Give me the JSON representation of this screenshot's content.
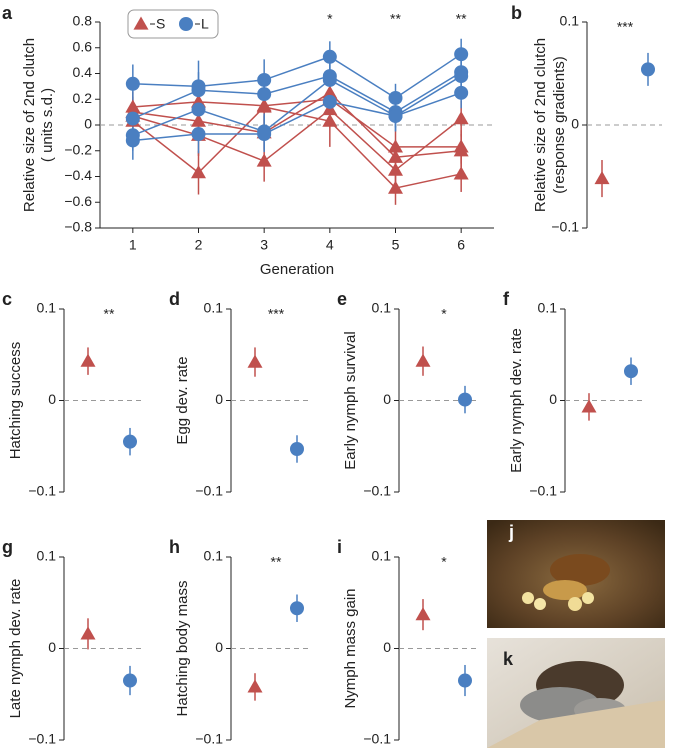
{
  "chart_data": [
    {
      "type": "line",
      "panel_label": "a",
      "ylabel": [
        "Relative size of 2nd clutch",
        "( units s.d.)"
      ],
      "xlabel": "Generation",
      "x": [
        1,
        2,
        3,
        4,
        5,
        6
      ],
      "xlim": [
        0.5,
        6.5
      ],
      "xticks": [
        1,
        2,
        3,
        4,
        5,
        6
      ],
      "ylim": [
        -0.8,
        0.8
      ],
      "yticks": [
        {
          "value": -0.8,
          "label": "−0.8"
        },
        {
          "value": -0.6,
          "label": "−0.6"
        },
        {
          "value": -0.4,
          "label": "−0.4"
        },
        {
          "value": -0.2,
          "label": "−0.2"
        },
        0,
        0.2,
        0.4,
        0.6,
        0.8
      ],
      "reference_line": 0,
      "legend": "upper left",
      "series": [
        {
          "name": "S",
          "color": "#c0504d",
          "marker": "triangle",
          "values": [
            0.14,
            0.18,
            0.15,
            0.2,
            -0.17,
            -0.17
          ],
          "errors": [
            0.12,
            0.15,
            0.15,
            0.12,
            0.12,
            0.13
          ]
        },
        {
          "name": "S",
          "color": "#c0504d",
          "marker": "triangle",
          "values": [
            0.1,
            0.03,
            -0.06,
            0.25,
            -0.25,
            -0.2
          ],
          "errors": [
            0.12,
            0.15,
            0.14,
            0.13,
            0.12,
            0.13
          ]
        },
        {
          "name": "S",
          "color": "#c0504d",
          "marker": "triangle",
          "values": [
            0.07,
            -0.08,
            -0.28,
            0.12,
            -0.35,
            0.05
          ],
          "errors": [
            0.12,
            0.16,
            0.16,
            0.14,
            0.13,
            0.14
          ]
        },
        {
          "name": "S",
          "color": "#c0504d",
          "marker": "triangle",
          "values": [
            0.03,
            -0.37,
            0.14,
            0.03,
            -0.49,
            -0.38
          ],
          "errors": [
            0.13,
            0.17,
            0.15,
            0.2,
            0.13,
            0.14
          ]
        },
        {
          "name": "L",
          "color": "#4a7fc1",
          "marker": "circle",
          "values": [
            0.32,
            0.3,
            0.35,
            0.53,
            0.21,
            0.55
          ],
          "errors": [
            0.15,
            0.2,
            0.16,
            0.12,
            0.11,
            0.12
          ]
        },
        {
          "name": "L",
          "color": "#4a7fc1",
          "marker": "circle",
          "values": [
            0.05,
            0.27,
            0.24,
            0.38,
            0.1,
            0.41
          ],
          "errors": [
            0.12,
            0.14,
            0.13,
            0.13,
            0.12,
            0.12
          ]
        },
        {
          "name": "L",
          "color": "#4a7fc1",
          "marker": "circle",
          "values": [
            -0.08,
            0.12,
            -0.05,
            0.35,
            0.07,
            0.38
          ],
          "errors": [
            0.12,
            0.13,
            0.14,
            0.13,
            0.12,
            0.13
          ]
        },
        {
          "name": "L",
          "color": "#4a7fc1",
          "marker": "circle",
          "values": [
            -0.12,
            -0.07,
            -0.07,
            0.18,
            0.07,
            0.25
          ],
          "errors": [
            0.15,
            0.15,
            0.14,
            0.12,
            0.12,
            0.12
          ]
        }
      ],
      "annotations": [
        {
          "x": 4,
          "text": "*"
        },
        {
          "x": 5,
          "text": "**"
        },
        {
          "x": 6,
          "text": "**"
        }
      ]
    },
    {
      "type": "dot",
      "panel_label": "b",
      "ylabel": [
        "Relative size of 2nd clutch",
        "(response gradients)"
      ],
      "ylim": [
        -0.1,
        0.1
      ],
      "yticks": [
        {
          "value": -0.1,
          "label": "−0.1"
        },
        0,
        0.1
      ],
      "reference_line": 0,
      "series": [
        {
          "name": "S",
          "color": "#c0504d",
          "marker": "triangle",
          "values": [
            -0.052
          ],
          "errors": [
            0.018
          ]
        },
        {
          "name": "L",
          "color": "#4a7fc1",
          "marker": "circle",
          "values": [
            0.054
          ],
          "errors": [
            0.016
          ]
        }
      ],
      "annotation": "***"
    },
    {
      "type": "dot",
      "panel_label": "c",
      "ylabel": [
        "Hatching success"
      ],
      "ylim": [
        -0.1,
        0.1
      ],
      "yticks": [
        {
          "value": -0.1,
          "label": "−0.1"
        },
        0,
        0.1
      ],
      "reference_line": 0,
      "series": [
        {
          "name": "S",
          "color": "#c0504d",
          "marker": "triangle",
          "values": [
            0.043
          ],
          "errors": [
            0.015
          ]
        },
        {
          "name": "L",
          "color": "#4a7fc1",
          "marker": "circle",
          "values": [
            -0.045
          ],
          "errors": [
            0.015
          ]
        }
      ],
      "annotation": "**"
    },
    {
      "type": "dot",
      "panel_label": "d",
      "ylabel": [
        "Egg dev. rate"
      ],
      "ylim": [
        -0.1,
        0.1
      ],
      "yticks": [
        {
          "value": -0.1,
          "label": "−0.1"
        },
        0,
        0.1
      ],
      "reference_line": 0,
      "series": [
        {
          "name": "S",
          "color": "#c0504d",
          "marker": "triangle",
          "values": [
            0.042
          ],
          "errors": [
            0.016
          ]
        },
        {
          "name": "L",
          "color": "#4a7fc1",
          "marker": "circle",
          "values": [
            -0.053
          ],
          "errors": [
            0.015
          ]
        }
      ],
      "annotation": "***"
    },
    {
      "type": "dot",
      "panel_label": "e",
      "ylabel": [
        "Early nymph survival"
      ],
      "ylim": [
        -0.1,
        0.1
      ],
      "yticks": [
        {
          "value": -0.1,
          "label": "−0.1"
        },
        0,
        0.1
      ],
      "reference_line": 0,
      "series": [
        {
          "name": "S",
          "color": "#c0504d",
          "marker": "triangle",
          "values": [
            0.043
          ],
          "errors": [
            0.016
          ]
        },
        {
          "name": "L",
          "color": "#4a7fc1",
          "marker": "circle",
          "values": [
            0.001
          ],
          "errors": [
            0.015
          ]
        }
      ],
      "annotation": "*"
    },
    {
      "type": "dot",
      "panel_label": "f",
      "ylabel": [
        "Early nymph dev. rate"
      ],
      "ylim": [
        -0.1,
        0.1
      ],
      "yticks": [
        {
          "value": -0.1,
          "label": "−0.1"
        },
        0,
        0.1
      ],
      "reference_line": 0,
      "series": [
        {
          "name": "S",
          "color": "#c0504d",
          "marker": "triangle",
          "values": [
            -0.007
          ],
          "errors": [
            0.015
          ]
        },
        {
          "name": "L",
          "color": "#4a7fc1",
          "marker": "circle",
          "values": [
            0.032
          ],
          "errors": [
            0.015
          ]
        }
      ]
    },
    {
      "type": "dot",
      "panel_label": "g",
      "ylabel": [
        "Late nymph dev. rate"
      ],
      "ylim": [
        -0.1,
        0.1
      ],
      "yticks": [
        {
          "value": -0.1,
          "label": "−0.1"
        },
        0,
        0.1
      ],
      "reference_line": 0,
      "series": [
        {
          "name": "S",
          "color": "#c0504d",
          "marker": "triangle",
          "values": [
            0.016
          ],
          "errors": [
            0.017
          ]
        },
        {
          "name": "L",
          "color": "#4a7fc1",
          "marker": "circle",
          "values": [
            -0.035
          ],
          "errors": [
            0.016
          ]
        }
      ]
    },
    {
      "type": "dot",
      "panel_label": "h",
      "ylabel": [
        "Hatching body mass"
      ],
      "ylim": [
        -0.1,
        0.1
      ],
      "yticks": [
        {
          "value": -0.1,
          "label": "−0.1"
        },
        0,
        0.1
      ],
      "reference_line": 0,
      "series": [
        {
          "name": "S",
          "color": "#c0504d",
          "marker": "triangle",
          "values": [
            -0.042
          ],
          "errors": [
            0.015
          ]
        },
        {
          "name": "L",
          "color": "#4a7fc1",
          "marker": "circle",
          "values": [
            0.044
          ],
          "errors": [
            0.015
          ]
        }
      ],
      "annotation": "**"
    },
    {
      "type": "dot",
      "panel_label": "i",
      "ylabel": [
        "Nymph mass gain"
      ],
      "ylim": [
        -0.1,
        0.1
      ],
      "yticks": [
        {
          "value": -0.1,
          "label": "−0.1"
        },
        0,
        0.1
      ],
      "reference_line": 0,
      "series": [
        {
          "name": "S",
          "color": "#c0504d",
          "marker": "triangle",
          "values": [
            0.037
          ],
          "errors": [
            0.017
          ]
        },
        {
          "name": "L",
          "color": "#4a7fc1",
          "marker": "circle",
          "values": [
            -0.035
          ],
          "errors": [
            0.017
          ]
        }
      ],
      "annotation": "*"
    }
  ],
  "images": [
    {
      "label": "j"
    },
    {
      "label": "k"
    }
  ]
}
